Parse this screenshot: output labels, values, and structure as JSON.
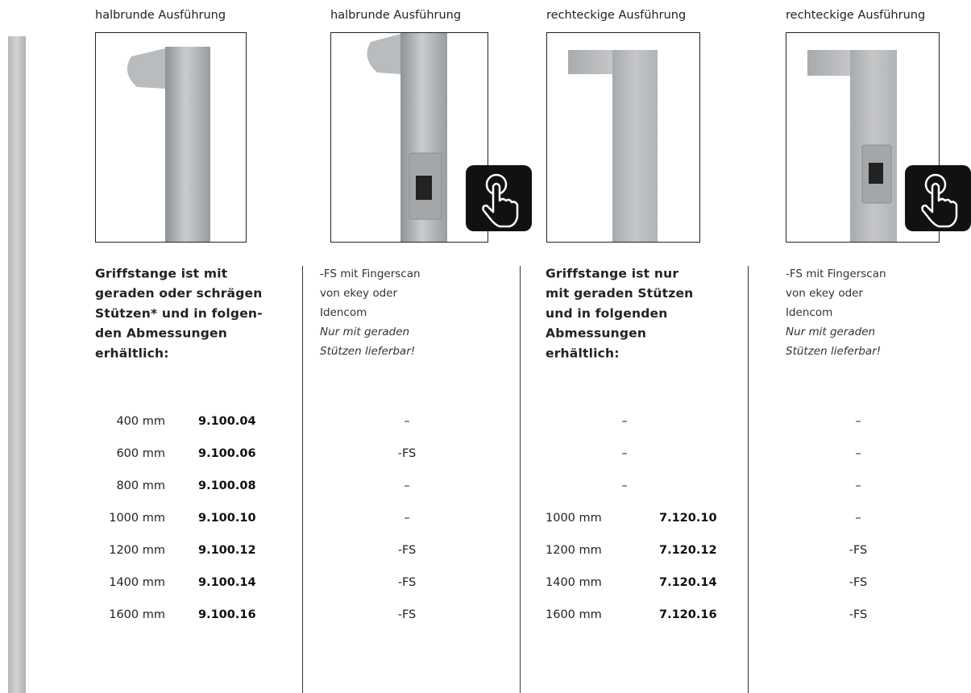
{
  "columns": [
    {
      "caption": "halbrunde Ausführung",
      "description": [
        "Griffstange ist mit",
        "geraden oder schrägen",
        "Stützen* und in folgen-",
        "den Abmessungen",
        "erhältlich:"
      ],
      "rows": [
        {
          "length": "400 mm",
          "code": "9.100.04"
        },
        {
          "length": "600 mm",
          "code": "9.100.06"
        },
        {
          "length": "800 mm",
          "code": "9.100.08"
        },
        {
          "length": "1000 mm",
          "code": "9.100.10"
        },
        {
          "length": "1200 mm",
          "code": "9.100.12"
        },
        {
          "length": "1400 mm",
          "code": "9.100.14"
        },
        {
          "length": "1600 mm",
          "code": "9.100.16"
        }
      ]
    },
    {
      "caption": "halbrunde Ausführung",
      "description": [
        "-FS mit Fingerscan",
        "von ekey oder",
        "Idencom"
      ],
      "note": [
        "Nur mit geraden",
        "Stützen lieferbar!"
      ],
      "rows": [
        {
          "value": "–"
        },
        {
          "value": "-FS"
        },
        {
          "value": "–"
        },
        {
          "value": "–"
        },
        {
          "value": "-FS"
        },
        {
          "value": "-FS"
        },
        {
          "value": "-FS"
        }
      ]
    },
    {
      "caption": "rechteckige Ausführung",
      "description": [
        "Griffstange ist nur",
        "mit geraden Stützen",
        "und in folgenden",
        "Abmessungen",
        "erhältlich:"
      ],
      "rows": [
        {
          "value": "–"
        },
        {
          "value": "–"
        },
        {
          "value": "–"
        },
        {
          "length": "1000 mm",
          "code": "7.120.10"
        },
        {
          "length": "1200 mm",
          "code": "7.120.12"
        },
        {
          "length": "1400 mm",
          "code": "7.120.14"
        },
        {
          "length": "1600 mm",
          "code": "7.120.16"
        }
      ]
    },
    {
      "caption": "rechteckige Ausführung",
      "description": [
        "-FS mit Fingerscan",
        "von ekey oder",
        "Idencom"
      ],
      "note": [
        "Nur mit geraden",
        "Stützen lieferbar!"
      ],
      "rows": [
        {
          "value": "–"
        },
        {
          "value": "–"
        },
        {
          "value": "–"
        },
        {
          "value": "–"
        },
        {
          "value": "-FS"
        },
        {
          "value": "-FS"
        },
        {
          "value": "-FS"
        }
      ]
    }
  ]
}
